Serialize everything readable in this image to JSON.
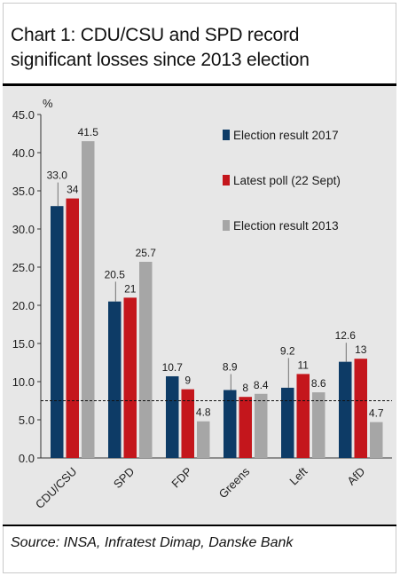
{
  "title_line1": "Chart 1: CDU/CSU and SPD record",
  "title_line2": "significant losses since 2013 election",
  "source": "Source: INSA, Infratest Dimap, Danske Bank",
  "chart_data": {
    "type": "bar",
    "ylabel": "%",
    "ylim": [
      0,
      45
    ],
    "yticks": [
      "0.0",
      "5.0",
      "10.0",
      "15.0",
      "20.0",
      "25.0",
      "30.0",
      "35.0",
      "40.0",
      "45.0"
    ],
    "categories": [
      "CDU/CSU",
      "SPD",
      "FDP",
      "Greens",
      "Left",
      "AfD"
    ],
    "series": [
      {
        "name": "Election result 2017",
        "color": "#0d3b66",
        "values": [
          33.0,
          20.5,
          10.7,
          8.9,
          9.2,
          12.6
        ],
        "labels": [
          "33.0",
          "20.5",
          "10.7",
          "8.9",
          "9.2",
          "12.6"
        ]
      },
      {
        "name": "Latest poll (22 Sept)",
        "color": "#c4161c",
        "values": [
          34,
          21,
          9,
          8,
          11,
          13
        ],
        "labels": [
          "34",
          "21",
          "9",
          "8",
          "11",
          "13"
        ]
      },
      {
        "name": "Election result 2013",
        "color": "#a6a6a6",
        "values": [
          41.5,
          25.7,
          4.8,
          8.4,
          8.6,
          4.7
        ],
        "labels": [
          "41.5",
          "25.7",
          "4.8",
          "8.4",
          "8.6",
          "4.7"
        ]
      }
    ],
    "threshold": 7.5,
    "legend": "top-right",
    "grid": false
  }
}
